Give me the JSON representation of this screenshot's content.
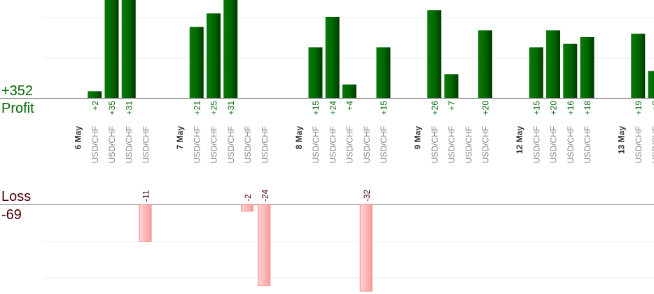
{
  "summary": {
    "profit_total": "+352",
    "profit_label": "Profit",
    "loss_label": "Loss",
    "loss_total": "-69"
  },
  "colors": {
    "profit_bar": "#006600",
    "loss_bar": "#ffb3b3",
    "profit_text": "#006600",
    "loss_text": "#4a0000",
    "date_text": "#333333",
    "pair_text": "#888888",
    "grid": "#eeeeee",
    "axis": "#888888"
  },
  "chart_data": {
    "type": "bar",
    "series": [
      {
        "name": "Profit",
        "direction": "up"
      },
      {
        "name": "Loss",
        "direction": "down"
      }
    ],
    "bars": [
      {
        "label": "6 May",
        "kind": "date"
      },
      {
        "label": "USD/CHF",
        "kind": "trade",
        "value": 2
      },
      {
        "label": "USD/CHF",
        "kind": "trade",
        "value": 35
      },
      {
        "label": "USD/CHF",
        "kind": "trade",
        "value": 31
      },
      {
        "label": "USD/CHF",
        "kind": "trade",
        "value": -11
      },
      {
        "label": "",
        "kind": "spacer"
      },
      {
        "label": "7 May",
        "kind": "date"
      },
      {
        "label": "USD/CHF",
        "kind": "trade",
        "value": 21
      },
      {
        "label": "USD/CHF",
        "kind": "trade",
        "value": 25
      },
      {
        "label": "USD/CHF",
        "kind": "trade",
        "value": 31
      },
      {
        "label": "USD/CHF",
        "kind": "trade",
        "value": -2
      },
      {
        "label": "USD/CHF",
        "kind": "trade",
        "value": -24
      },
      {
        "label": "",
        "kind": "spacer"
      },
      {
        "label": "8 May",
        "kind": "date"
      },
      {
        "label": "USD/CHF",
        "kind": "trade",
        "value": 15
      },
      {
        "label": "USD/CHF",
        "kind": "trade",
        "value": 24
      },
      {
        "label": "USD/CHF",
        "kind": "trade",
        "value": 4
      },
      {
        "label": "USD/CHF",
        "kind": "trade",
        "value": -32
      },
      {
        "label": "USD/CHF",
        "kind": "trade",
        "value": 15
      },
      {
        "label": "",
        "kind": "spacer"
      },
      {
        "label": "9 May",
        "kind": "date"
      },
      {
        "label": "USD/CHF",
        "kind": "trade",
        "value": 26
      },
      {
        "label": "USD/CHF",
        "kind": "trade",
        "value": 7
      },
      {
        "label": "USD/CHF",
        "kind": "trade",
        "value": ""
      },
      {
        "label": "USD/CHF",
        "kind": "trade",
        "value": 20
      },
      {
        "label": "",
        "kind": "spacer"
      },
      {
        "label": "12 May",
        "kind": "date"
      },
      {
        "label": "USD/CHF",
        "kind": "trade",
        "value": 15
      },
      {
        "label": "USD/CHF",
        "kind": "trade",
        "value": 20
      },
      {
        "label": "USD/CHF",
        "kind": "trade",
        "value": 16
      },
      {
        "label": "USD/CHF",
        "kind": "trade",
        "value": 18
      },
      {
        "label": "",
        "kind": "spacer"
      },
      {
        "label": "13 May",
        "kind": "date"
      },
      {
        "label": "USD/CHF",
        "kind": "trade",
        "value": 19
      },
      {
        "label": "USD/CHF",
        "kind": "trade",
        "value": 8
      }
    ],
    "profit_scale_max": 24,
    "loss_scale_max": 24,
    "grid": true
  }
}
